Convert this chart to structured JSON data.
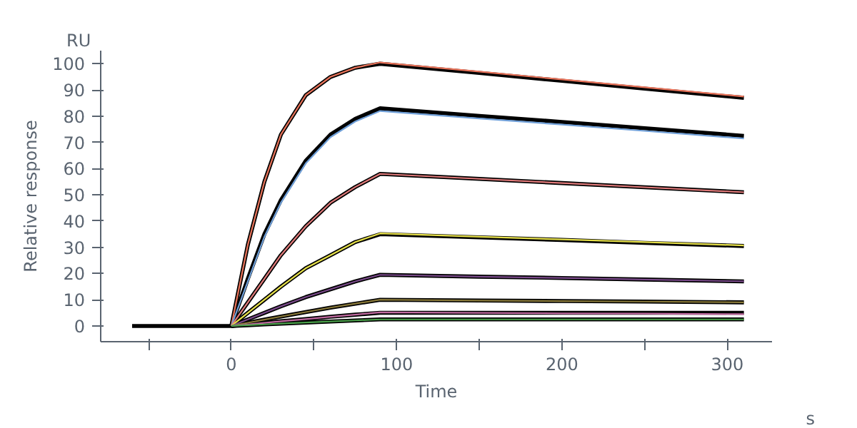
{
  "chart_data": {
    "type": "line",
    "xlabel": "Time",
    "ylabel": "Relative response",
    "annotations": [
      "RU",
      "s"
    ],
    "x": [
      -60,
      0,
      10,
      20,
      30,
      45,
      60,
      75,
      90,
      150,
      200,
      250,
      310
    ],
    "xlim": [
      -79,
      327
    ],
    "ylim": [
      -6,
      105
    ],
    "xticks": [
      {
        "value": -50,
        "label": null
      },
      0,
      {
        "value": 50,
        "label": null
      },
      100,
      {
        "value": 150,
        "label": null
      },
      200,
      {
        "value": 250,
        "label": null
      },
      300
    ],
    "yticks": [
      0,
      10,
      20,
      30,
      40,
      50,
      60,
      70,
      80,
      90,
      100
    ],
    "grid": false,
    "marker": "none",
    "line_style": "solid",
    "series": [
      {
        "color": "#e8735a",
        "values": [
          null,
          0,
          31,
          55,
          73,
          88,
          95,
          98.5,
          100.5,
          97,
          94,
          91,
          87.5
        ]
      },
      {
        "color": "#6f9fd8",
        "values": [
          null,
          0,
          17,
          34,
          47,
          62,
          72,
          78,
          82,
          79.1,
          76.8,
          74.4,
          71.5
        ]
      },
      {
        "color": "#e07a7a",
        "values": [
          null,
          0,
          9,
          18,
          27,
          38,
          47,
          53,
          58,
          56.1,
          54.5,
          52.9,
          51
        ]
      },
      {
        "color": "#e6e04a",
        "values": [
          null,
          0,
          5,
          10,
          15,
          22,
          27,
          32,
          35.3,
          34,
          33,
          32,
          30.7
        ]
      },
      {
        "color": "#7a4a8a",
        "values": [
          null,
          0,
          2.5,
          5,
          7.5,
          11,
          14,
          17,
          19.5,
          18.8,
          18.3,
          17.7,
          17
        ]
      },
      {
        "color": "#8a7a3a",
        "values": [
          null,
          0,
          1.2,
          2.4,
          3.6,
          5.3,
          7,
          8.5,
          10,
          9.7,
          9.5,
          9.3,
          9
        ]
      },
      {
        "color": "#c06aa0",
        "values": [
          null,
          0,
          0.6,
          1.2,
          1.8,
          2.6,
          3.5,
          4.3,
          5.2,
          5,
          4.8,
          4.7,
          4.5
        ]
      },
      {
        "color": "#4aa04a",
        "values": [
          null,
          0,
          0.3,
          0.6,
          0.9,
          1.3,
          1.7,
          2.1,
          2.5,
          2.5,
          2.5,
          2.5,
          2.5
        ]
      },
      {
        "color": "#000000",
        "values": [
          0,
          0,
          31,
          55,
          73,
          88,
          95,
          98.5,
          100,
          96.5,
          93.5,
          90.5,
          87
        ]
      },
      {
        "color": "#000000",
        "values": [
          null,
          0,
          18,
          35,
          48,
          63,
          73,
          79,
          83,
          80.1,
          77.8,
          75.4,
          72.5
        ]
      },
      {
        "color": "#000000",
        "values": [
          null,
          0,
          9,
          18,
          27,
          38,
          47,
          53,
          58,
          56.1,
          54.5,
          52.9,
          51
        ]
      },
      {
        "color": "#000000",
        "values": [
          null,
          0,
          5,
          10,
          15,
          22,
          27,
          32,
          35,
          33.8,
          32.8,
          31.7,
          30.5
        ]
      },
      {
        "color": "#000000",
        "values": [
          null,
          0,
          2.5,
          5,
          7.5,
          11,
          14,
          17,
          19.5,
          18.8,
          18.3,
          17.7,
          17
        ]
      },
      {
        "color": "#000000",
        "values": [
          null,
          0,
          1.2,
          2.4,
          3.6,
          5.3,
          7,
          8.5,
          10,
          9.7,
          9.5,
          9.3,
          9
        ]
      },
      {
        "color": "#000000",
        "values": [
          null,
          0,
          0.6,
          1.2,
          1.8,
          2.6,
          3.5,
          4.3,
          5,
          5,
          5,
          5,
          5
        ]
      },
      {
        "color": "#000000",
        "values": [
          null,
          0,
          0.3,
          0.6,
          0.9,
          1.3,
          1.7,
          2.1,
          2.5,
          2.5,
          2.5,
          2.5,
          2.5
        ]
      }
    ]
  }
}
